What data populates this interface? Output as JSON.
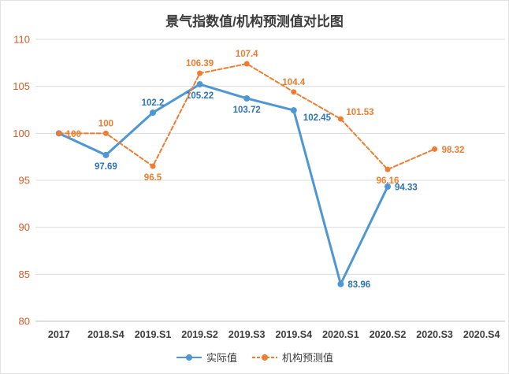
{
  "chart_data": {
    "type": "line",
    "title": "景气指数值/机构预测值对比图",
    "categories": [
      "2017",
      "2018.S4",
      "2019.S1",
      "2019.S2",
      "2019.S3",
      "2019.S4",
      "2020.S1",
      "2020.S2",
      "2020.S3",
      "2020.S4"
    ],
    "series": [
      {
        "id": "actual",
        "name": "实际值",
        "color": "#4f96d4",
        "label_color": "#2e74b5",
        "line_style": "solid",
        "line_width": 3,
        "marker_radius": 4,
        "values": [
          100,
          97.69,
          102.2,
          105.22,
          103.72,
          102.45,
          83.96,
          94.33,
          null,
          null
        ],
        "labels": [
          "100",
          "97.69",
          "102.2",
          "105.22",
          "103.72",
          "102.45",
          "83.96",
          "94.33",
          "",
          ""
        ],
        "label_positions": [
          "none",
          "below",
          "above",
          "below",
          "below",
          "below-right",
          "right",
          "right",
          "none",
          "none"
        ]
      },
      {
        "id": "forecast",
        "name": "机构预测值",
        "color": "#ed7d31",
        "label_color": "#ed7d31",
        "line_style": "dashed",
        "line_width": 2,
        "marker_radius": 3.5,
        "values": [
          100,
          100,
          96.5,
          106.39,
          107.4,
          104.4,
          101.53,
          96.16,
          98.32,
          null
        ],
        "labels": [
          "100",
          "100",
          "96.5",
          "106.39",
          "107.4",
          "104.4",
          "101.53",
          "96.16",
          "98.32",
          ""
        ],
        "label_positions": [
          "right",
          "above",
          "below",
          "above",
          "above",
          "above",
          "above-right",
          "below",
          "right",
          "none"
        ]
      }
    ],
    "ylim": [
      80,
      110
    ],
    "ytick_step": 5,
    "grid": true,
    "legend_position": "bottom",
    "colors": {
      "y_axis_label": "#d65a27",
      "x_axis_label": "#3b3b3b",
      "gridline": "#dcdcdc",
      "axis_line": "#bdbdbd",
      "title": "#3b3b3b"
    }
  }
}
